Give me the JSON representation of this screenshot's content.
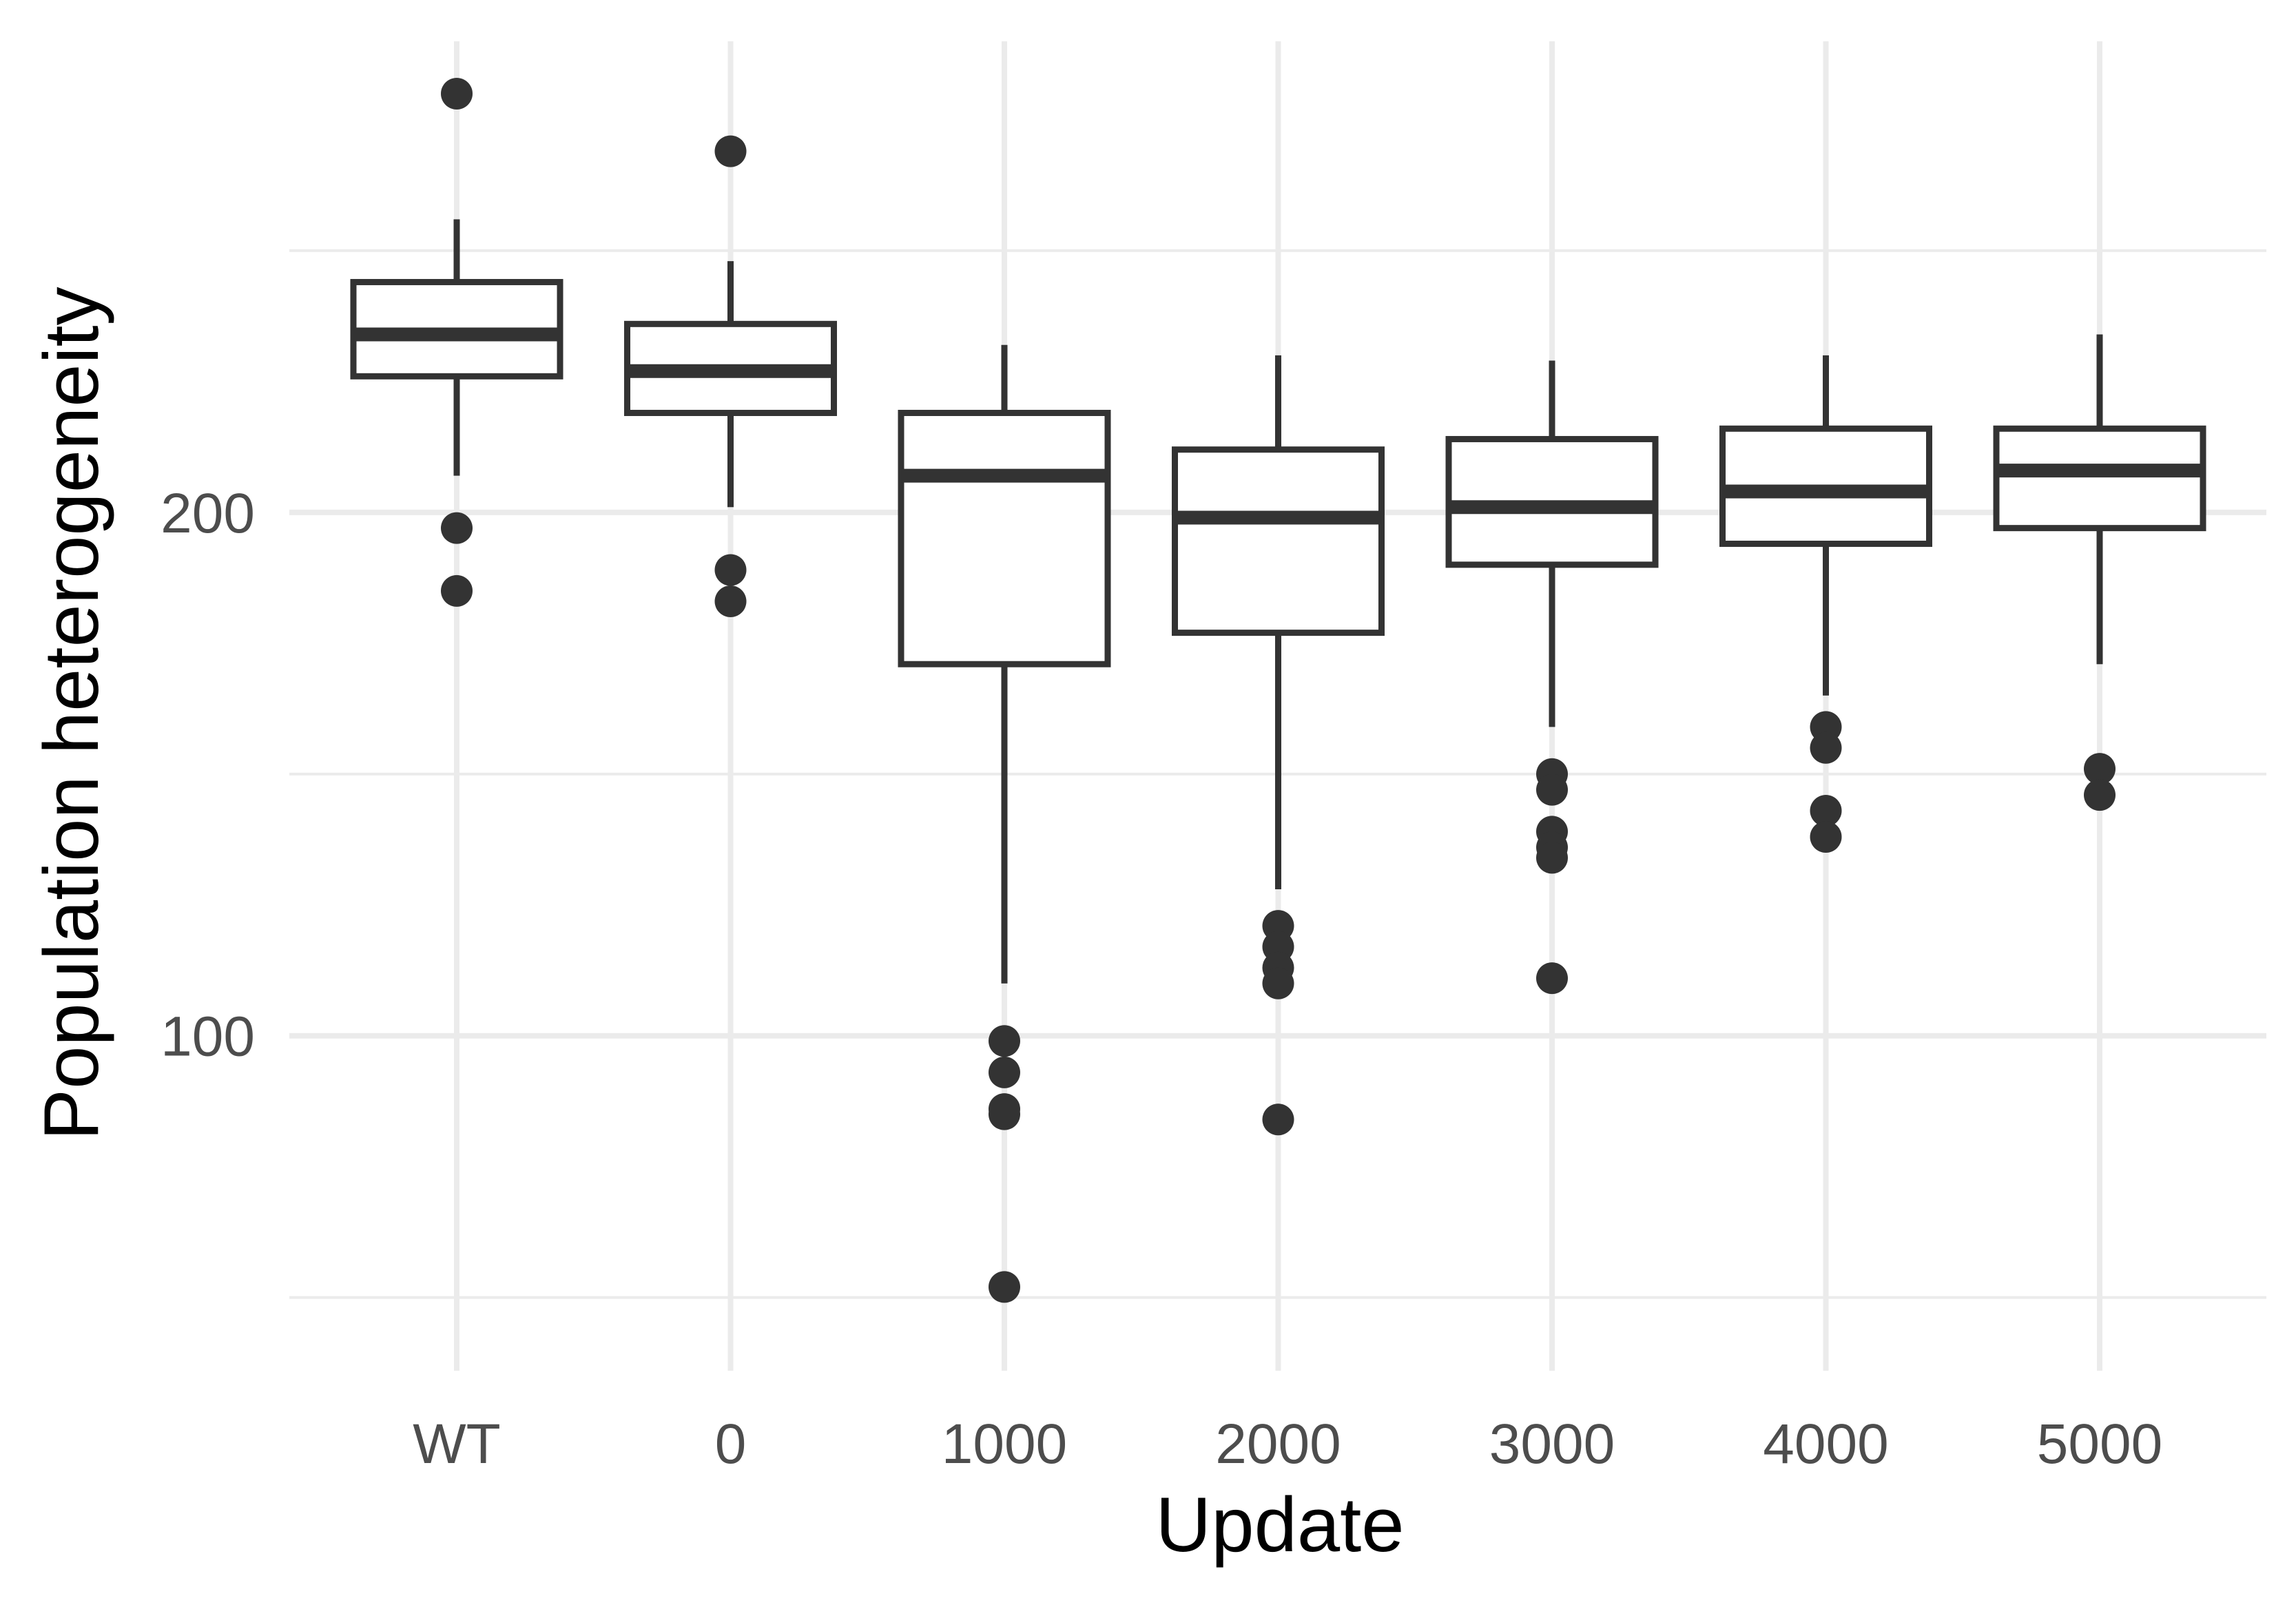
{
  "chart_data": {
    "type": "box",
    "xlabel": "Update",
    "ylabel": "Population heterogeneity",
    "categories": [
      "WT",
      "0",
      "1000",
      "2000",
      "3000",
      "4000",
      "5000"
    ],
    "y_ticks": [
      100,
      200
    ],
    "y_minor_ticks": [
      50,
      150,
      250
    ],
    "ylim": [
      36,
      290
    ],
    "grid": true,
    "boxes": [
      {
        "category": "WT",
        "whisker_low": 207,
        "q1": 226,
        "median": 234,
        "q3": 244,
        "whisker_high": 256,
        "outliers": [
          280,
          197,
          185
        ]
      },
      {
        "category": "0",
        "whisker_low": 201,
        "q1": 219,
        "median": 227,
        "q3": 236,
        "whisker_high": 248,
        "outliers": [
          269,
          189,
          183
        ]
      },
      {
        "category": "1000",
        "whisker_low": 110,
        "q1": 171,
        "median": 207,
        "q3": 219,
        "whisker_high": 232,
        "outliers": [
          99,
          93,
          86,
          85,
          52
        ]
      },
      {
        "category": "2000",
        "whisker_low": 128,
        "q1": 177,
        "median": 199,
        "q3": 212,
        "whisker_high": 230,
        "outliers": [
          121,
          117,
          113,
          110,
          84
        ]
      },
      {
        "category": "3000",
        "whisker_low": 159,
        "q1": 190,
        "median": 201,
        "q3": 214,
        "whisker_high": 229,
        "outliers": [
          150,
          147,
          139,
          136,
          134,
          111
        ]
      },
      {
        "category": "4000",
        "whisker_low": 165,
        "q1": 194,
        "median": 204,
        "q3": 216,
        "whisker_high": 230,
        "outliers": [
          159,
          155,
          143,
          138
        ]
      },
      {
        "category": "5000",
        "whisker_low": 171,
        "q1": 197,
        "median": 208,
        "q3": 216,
        "whisker_high": 234,
        "outliers": [
          151,
          146
        ]
      }
    ]
  }
}
